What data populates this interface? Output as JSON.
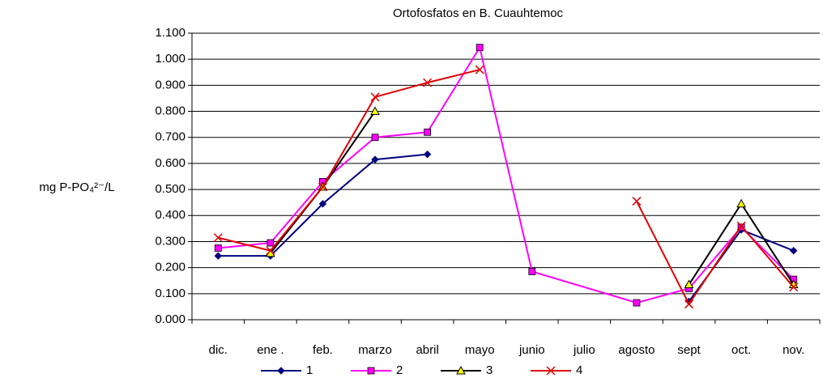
{
  "chart_data": {
    "type": "line",
    "title": "Ortofosfatos en B. Cuauhtemoc",
    "y_label": "mg P-PO₄²⁻/L",
    "categories": [
      "dic.",
      "ene .",
      "feb.",
      "marzo",
      "abril",
      "mayo",
      "junio",
      "julio",
      "agosto",
      "sept",
      "oct.",
      "nov."
    ],
    "series": [
      {
        "name": "1",
        "color": "#000080",
        "marker": "diamond",
        "marker_fill": "#000080",
        "values": [
          0.245,
          0.245,
          0.445,
          0.615,
          0.635,
          null,
          null,
          null,
          null,
          0.07,
          0.345,
          0.265
        ]
      },
      {
        "name": "2",
        "color": "#ff00ff",
        "marker": "square",
        "marker_fill": "#ff00ff",
        "connect_gaps": true,
        "values": [
          0.275,
          0.295,
          0.53,
          0.7,
          0.72,
          1.045,
          0.185,
          null,
          0.065,
          0.12,
          0.355,
          0.155
        ]
      },
      {
        "name": "3",
        "color": "#000000",
        "marker": "triangle",
        "marker_fill": "#ffff00",
        "values": [
          null,
          0.255,
          0.51,
          0.8,
          null,
          null,
          null,
          null,
          null,
          0.135,
          0.445,
          0.135
        ]
      },
      {
        "name": "4",
        "color": "#e00000",
        "marker": "x",
        "marker_fill": "none",
        "values": [
          0.315,
          0.265,
          0.51,
          0.855,
          0.91,
          0.96,
          null,
          null,
          0.455,
          0.06,
          0.36,
          0.125
        ]
      }
    ],
    "ylim": [
      0,
      1.1
    ],
    "yticks": [
      {
        "value": 0,
        "label": "0.000"
      },
      {
        "value": 0.1,
        "label": "0.100"
      },
      {
        "value": 0.2,
        "label": "0.200"
      },
      {
        "value": 0.3,
        "label": "0.300"
      },
      {
        "value": 0.4,
        "label": "0.400"
      },
      {
        "value": 0.5,
        "label": "0.500"
      },
      {
        "value": 0.6,
        "label": "0.600"
      },
      {
        "value": 0.7,
        "label": "0.700"
      },
      {
        "value": 0.8,
        "label": "0.800"
      },
      {
        "value": 0.9,
        "label": "0.900"
      },
      {
        "value": 1.0,
        "label": "1.000"
      },
      {
        "value": 1.1,
        "label": "1.100"
      }
    ],
    "grid": true,
    "legend": "bottom"
  }
}
